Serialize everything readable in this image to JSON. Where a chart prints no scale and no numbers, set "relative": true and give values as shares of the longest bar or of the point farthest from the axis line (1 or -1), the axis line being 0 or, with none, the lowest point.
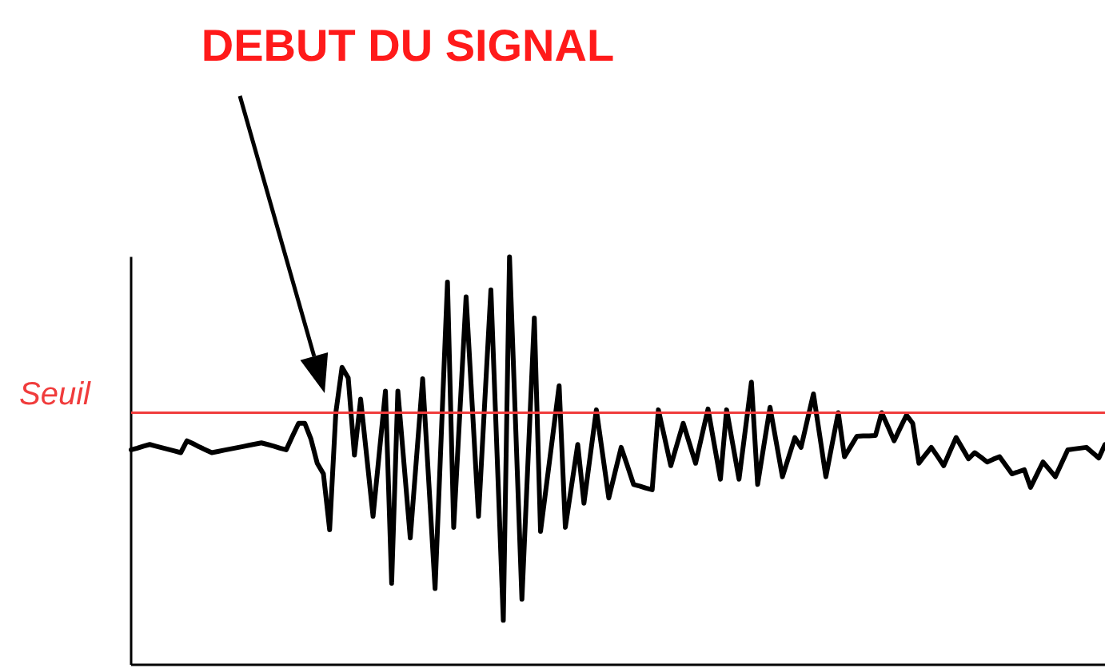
{
  "chart_data": {
    "type": "line",
    "relative": true,
    "categories": [
      null,
      null,
      null,
      null,
      null,
      null,
      null,
      null,
      null,
      null,
      null,
      null,
      null,
      null,
      null,
      null,
      null,
      null,
      null,
      null,
      null,
      null,
      null,
      null,
      null,
      null,
      null,
      null,
      null,
      null,
      null,
      null,
      null,
      null,
      null,
      null,
      null,
      null,
      null,
      null,
      null,
      null,
      null,
      null,
      null,
      null,
      null,
      null,
      null,
      null,
      null,
      null,
      null,
      null,
      null,
      null,
      null,
      null,
      null,
      null,
      null,
      null,
      null,
      null,
      null,
      null,
      null,
      null,
      null,
      null,
      null,
      null,
      null,
      null,
      null,
      null,
      null,
      null,
      null,
      null,
      null,
      null,
      null,
      null,
      null,
      null,
      null,
      null,
      null,
      null,
      null,
      null,
      null,
      null,
      null,
      null,
      null,
      null,
      null,
      null,
      null,
      null,
      null,
      null,
      null,
      null,
      null,
      null,
      null,
      null,
      null,
      null,
      null,
      null,
      null,
      null,
      null,
      null,
      null,
      null,
      null,
      null,
      null,
      null,
      null,
      null,
      null,
      null,
      null,
      null,
      null,
      null,
      null,
      null,
      null,
      null,
      null,
      null,
      null,
      null,
      null,
      null,
      null,
      null,
      null,
      null,
      null,
      null,
      null,
      null,
      null,
      null,
      null,
      null,
      null,
      null,
      null,
      null
    ],
    "series": [
      {
        "color": "#000000",
        "values": [
          0.527,
          0.531,
          0.536,
          0.54,
          0.536,
          0.532,
          0.528,
          0.524,
          0.52,
          0.549,
          0.542,
          0.534,
          0.527,
          0.52,
          0.523,
          0.526,
          0.529,
          0.532,
          0.535,
          0.538,
          0.541,
          0.544,
          0.54,
          0.536,
          0.531,
          0.527,
          0.56,
          0.592,
          0.592,
          0.553,
          0.494,
          0.468,
          0.331,
          0.618,
          0.729,
          0.703,
          0.514,
          0.651,
          0.508,
          0.364,
          0.518,
          0.671,
          0.2,
          0.671,
          0.491,
          0.311,
          0.506,
          0.701,
          0.444,
          0.187,
          0.563,
          0.938,
          0.337,
          0.62,
          0.902,
          0.633,
          0.364,
          0.642,
          0.919,
          0.514,
          0.109,
          1,
          0.581,
          0.161,
          0.506,
          0.85,
          0.327,
          0.446,
          0.565,
          0.684,
          0.337,
          0.439,
          0.54,
          0.396,
          0.511,
          0.625,
          0.517,
          0.409,
          0.471,
          0.533,
          0.488,
          0.442,
          0.438,
          0.433,
          0.429,
          0.625,
          0.557,
          0.488,
          0.54,
          0.592,
          0.543,
          0.494,
          0.561,
          0.627,
          0.541,
          0.455,
          0.625,
          0.54,
          0.455,
          0.574,
          0.693,
          0.442,
          0.537,
          0.631,
          0.546,
          0.461,
          0.509,
          0.557,
          0.533,
          0.599,
          0.664,
          0.563,
          0.461,
          0.54,
          0.618,
          0.51,
          0.535,
          0.56,
          0.561,
          0.561,
          0.562,
          0.618,
          0.584,
          0.549,
          0.581,
          0.612,
          0.592,
          0.494,
          0.514,
          0.533,
          0.511,
          0.488,
          0.523,
          0.557,
          0.531,
          0.505,
          0.52,
          0.509,
          0.497,
          0.504,
          0.51,
          0.489,
          0.468,
          0.473,
          0.478,
          0.435,
          0.466,
          0.497,
          0.479,
          0.461,
          0.494,
          0.527,
          0.529,
          0.531,
          0.533,
          0.52,
          0.507,
          0.54
        ]
      }
    ],
    "ref_lines": [
      {
        "axis": "y",
        "value": 0.618,
        "label": "Seuil",
        "color": "#f03c3c",
        "line_style": "solid"
      }
    ],
    "annotations": [
      "DEBUT DU SIGNAL"
    ],
    "line_style": "solid",
    "marker": "none"
  }
}
